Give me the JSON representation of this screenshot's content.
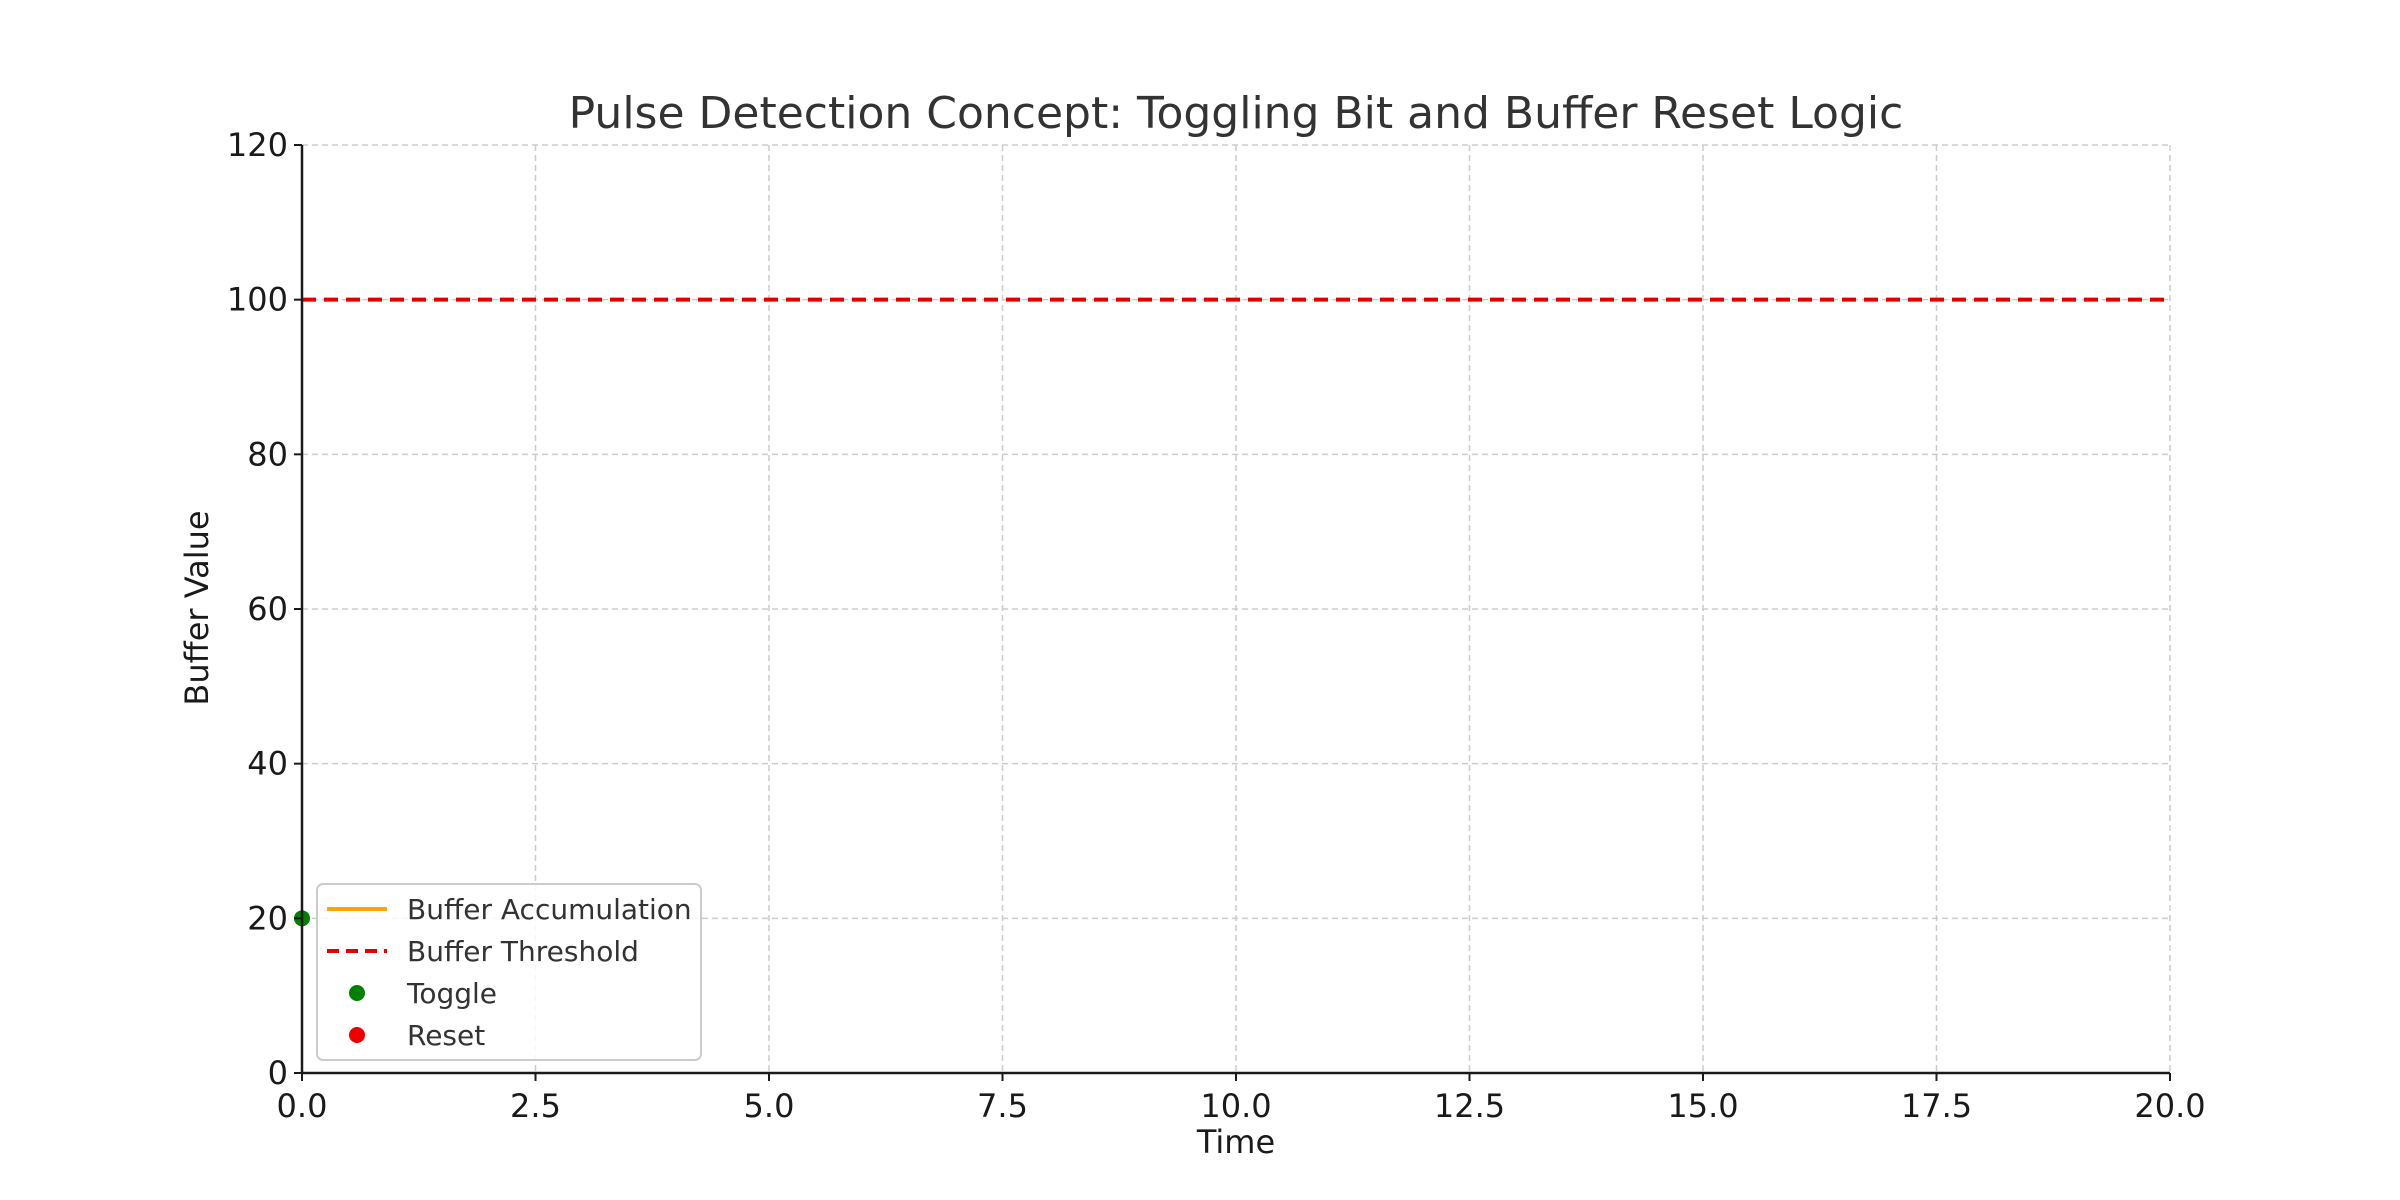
{
  "chart_data": {
    "type": "line",
    "title": "Pulse Detection Concept: Toggling Bit and Buffer Reset Logic",
    "xlabel": "Time",
    "ylabel": "Buffer Value",
    "xlim": [
      0,
      20
    ],
    "ylim": [
      0,
      120
    ],
    "xticks": [
      0,
      2.5,
      5,
      7.5,
      10,
      12.5,
      15,
      17.5,
      20
    ],
    "xtick_labels": [
      "0.0",
      "2.5",
      "5.0",
      "7.5",
      "10.0",
      "12.5",
      "15.0",
      "17.5",
      "20.0"
    ],
    "yticks": [
      0,
      20,
      40,
      60,
      80,
      100,
      120
    ],
    "ytick_labels": [
      "0",
      "20",
      "40",
      "60",
      "80",
      "100",
      "120"
    ],
    "grid": true,
    "legend_position": "lower-left",
    "series": [
      {
        "name": "Buffer Accumulation",
        "kind": "line",
        "style": "solid",
        "color": "#FFA500",
        "x": [],
        "y": []
      },
      {
        "name": "Buffer Threshold",
        "kind": "hline",
        "style": "dashed",
        "color": "#E00000",
        "y": 100
      },
      {
        "name": "Toggle",
        "kind": "scatter",
        "color": "#008000",
        "x": [
          0
        ],
        "y": [
          20
        ]
      },
      {
        "name": "Reset",
        "kind": "scatter",
        "color": "#EE0000",
        "x": [],
        "y": []
      }
    ]
  }
}
